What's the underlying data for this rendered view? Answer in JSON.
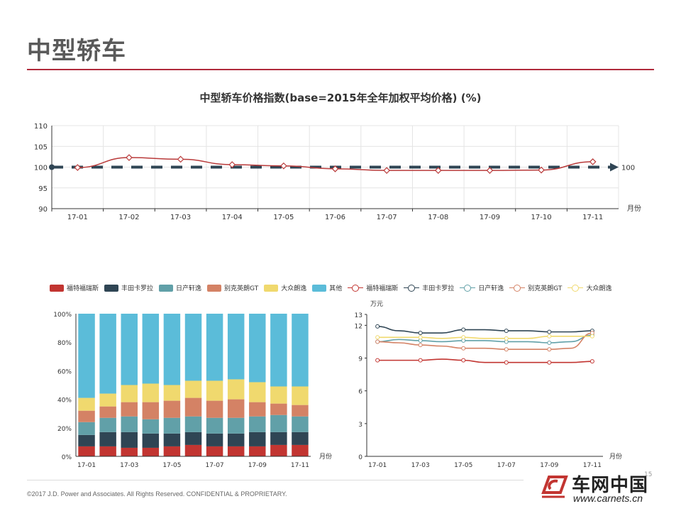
{
  "page": {
    "title": "中型轿车",
    "footer": "©2017 J.D. Power and Associates. All Rights Reserved. CONFIDENTIAL & PROPRIETARY.",
    "page_number": "15"
  },
  "logo": {
    "cn": "车网中国",
    "url": "www.carnets.cn"
  },
  "top_chart_title": "中型轿车价格指数(base=2015年全年加权平均价格) (%)",
  "legend": [
    {
      "label": "福特福瑞斯",
      "kind": "bar",
      "color": "#c23531"
    },
    {
      "label": "丰田卡罗拉",
      "kind": "bar",
      "color": "#2f4554"
    },
    {
      "label": "日产轩逸",
      "kind": "bar",
      "color": "#61a0a8"
    },
    {
      "label": "别克英朗GT",
      "kind": "bar",
      "color": "#d48265"
    },
    {
      "label": "大众朗逸",
      "kind": "bar",
      "color": "#f0d96e"
    },
    {
      "label": "其他",
      "kind": "bar",
      "color": "#5bbcd9"
    },
    {
      "label": "福特福瑞斯",
      "kind": "line",
      "color": "#c23531"
    },
    {
      "label": "丰田卡罗拉",
      "kind": "line",
      "color": "#2f4554"
    },
    {
      "label": "日产轩逸",
      "kind": "line",
      "color": "#61a0a8"
    },
    {
      "label": "别克英朗GT",
      "kind": "line",
      "color": "#d48265"
    },
    {
      "label": "大众朗逸",
      "kind": "line",
      "color": "#f0d96e"
    }
  ],
  "chart_data": [
    {
      "type": "line",
      "title": "中型轿车价格指数(base=2015年全年加权平均价格) (%)",
      "x": [
        "17-01",
        "17-02",
        "17-03",
        "17-04",
        "17-05",
        "17-06",
        "17-07",
        "17-08",
        "17-09",
        "17-10",
        "17-11"
      ],
      "xlabel": "月份",
      "ylim": [
        90,
        110
      ],
      "yticks": [
        90,
        95,
        100,
        105,
        110
      ],
      "grid": true,
      "series": [
        {
          "values": [
            99.9,
            102.3,
            101.9,
            100.6,
            100.3,
            99.6,
            99.2,
            99.2,
            99.2,
            99.3,
            101.3
          ],
          "color": "#b93a3a"
        }
      ],
      "reference_line": {
        "value": 100,
        "label": "100",
        "color": "#2f4554"
      }
    },
    {
      "type": "bar",
      "stacked": true,
      "x": [
        "17-01",
        "17-02",
        "17-03",
        "17-04",
        "17-05",
        "17-06",
        "17-07",
        "17-08",
        "17-09",
        "17-10",
        "17-11"
      ],
      "xtick_labels": [
        "17-01",
        "17-03",
        "17-05",
        "17-07",
        "17-09",
        "17-11"
      ],
      "xlabel": "月份",
      "ylim": [
        0,
        100
      ],
      "yticks": [
        "0%",
        "20%",
        "40%",
        "60%",
        "80%",
        "100%"
      ],
      "series": [
        {
          "name": "福特福瑞斯",
          "color": "#c23531",
          "values": [
            7,
            7,
            6,
            6,
            7,
            8,
            7,
            7,
            7,
            8,
            8
          ]
        },
        {
          "name": "丰田卡罗拉",
          "color": "#2f4554",
          "values": [
            8,
            10,
            11,
            10,
            9,
            9,
            9,
            9,
            10,
            9,
            9
          ]
        },
        {
          "name": "日产轩逸",
          "color": "#61a0a8",
          "values": [
            9,
            10,
            11,
            10,
            11,
            11,
            11,
            11,
            11,
            12,
            11
          ]
        },
        {
          "name": "别克英朗GT",
          "color": "#d48265",
          "values": [
            8,
            8,
            10,
            12,
            12,
            13,
            12,
            13,
            10,
            8,
            8
          ]
        },
        {
          "name": "大众朗逸",
          "color": "#f0d96e",
          "values": [
            9,
            9,
            12,
            13,
            11,
            12,
            14,
            14,
            14,
            12,
            13
          ]
        },
        {
          "name": "其他",
          "color": "#5bbcd9",
          "values": [
            59,
            56,
            50,
            49,
            50,
            47,
            47,
            46,
            48,
            51,
            51
          ]
        }
      ]
    },
    {
      "type": "line",
      "x": [
        "17-01",
        "17-02",
        "17-03",
        "17-04",
        "17-05",
        "17-06",
        "17-07",
        "17-08",
        "17-09",
        "17-10",
        "17-11"
      ],
      "xtick_labels": [
        "17-01",
        "17-03",
        "17-05",
        "17-07",
        "17-09",
        "17-11"
      ],
      "xlabel": "月份",
      "ylabel": "万元",
      "ylim": [
        0,
        13
      ],
      "yticks": [
        0,
        3,
        6,
        9,
        12,
        13
      ],
      "series": [
        {
          "name": "福特福瑞斯",
          "color": "#c23531",
          "values": [
            8.8,
            8.8,
            8.8,
            8.9,
            8.8,
            8.6,
            8.6,
            8.6,
            8.6,
            8.6,
            8.7
          ]
        },
        {
          "name": "丰田卡罗拉",
          "color": "#2f4554",
          "values": [
            11.9,
            11.5,
            11.3,
            11.3,
            11.6,
            11.6,
            11.5,
            11.5,
            11.4,
            11.4,
            11.5
          ]
        },
        {
          "name": "日产轩逸",
          "color": "#61a0a8",
          "values": [
            10.5,
            10.7,
            10.6,
            10.5,
            10.6,
            10.6,
            10.5,
            10.5,
            10.4,
            10.5,
            11.1
          ]
        },
        {
          "name": "别克英朗GT",
          "color": "#d48265",
          "values": [
            10.5,
            10.4,
            10.2,
            10.1,
            9.9,
            9.9,
            9.8,
            9.8,
            9.8,
            9.9,
            11.3
          ]
        },
        {
          "name": "大众朗逸",
          "color": "#f0d96e",
          "values": [
            10.9,
            10.9,
            10.9,
            10.8,
            10.9,
            10.8,
            10.8,
            10.8,
            11.0,
            11.0,
            11.0
          ]
        }
      ]
    }
  ]
}
